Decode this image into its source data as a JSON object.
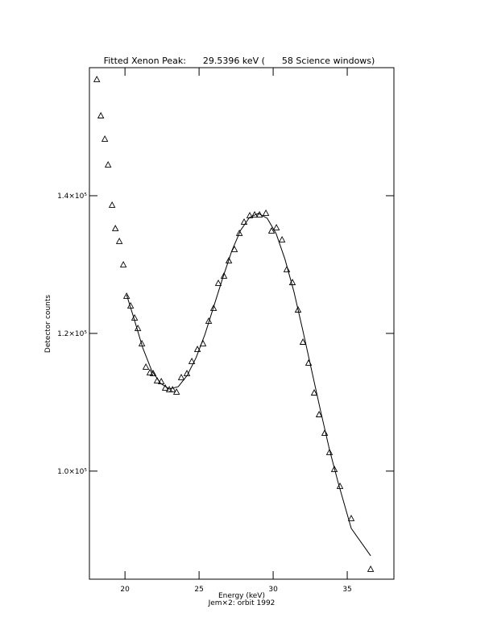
{
  "chart_data": {
    "type": "scatter",
    "title": "Fitted Xenon Peak:      29.5396 keV (      58 Science windows)",
    "subtitle": "Jem×2: orbit 1992",
    "x_label": "Energy (keV)",
    "y_label": "Detector counts",
    "xlim": [
      17.6,
      38.15
    ],
    "ylim": [
      84300,
      158600
    ],
    "xticks": [
      20,
      25,
      30,
      35
    ],
    "yticks": [
      {
        "value": 100000,
        "label": "1.0×10⁵"
      },
      {
        "value": 120000,
        "label": "1.2×10⁵"
      },
      {
        "value": 140000,
        "label": "1.4×10⁵"
      }
    ],
    "series": [
      {
        "name": "Data",
        "color": "#000000",
        "marker": "triangle",
        "x": [
          18.1,
          18.37,
          18.64,
          18.86,
          19.13,
          19.35,
          19.62,
          19.89,
          20.11,
          20.38,
          20.65,
          20.87,
          21.14,
          21.41,
          21.68,
          21.9,
          22.17,
          22.45,
          22.72,
          22.99,
          23.21,
          23.48,
          23.8,
          24.18,
          24.51,
          24.89,
          25.27,
          25.65,
          25.98,
          26.3,
          26.68,
          27.01,
          27.39,
          27.72,
          28.04,
          28.42,
          28.75,
          29.08,
          29.51,
          29.89,
          30.22,
          30.6,
          30.92,
          31.3,
          31.68,
          32.01,
          32.39,
          32.77,
          33.1,
          33.48,
          33.8,
          34.13,
          34.51,
          35.27,
          36.58
        ],
        "values": [
          156850,
          151580,
          148190,
          144450,
          138600,
          135200,
          133330,
          129940,
          125380,
          123970,
          122220,
          120700,
          118470,
          115080,
          114260,
          114140,
          113090,
          112970,
          112040,
          111800,
          111800,
          111450,
          113560,
          114140,
          115900,
          117650,
          118470,
          121750,
          123620,
          127250,
          128300,
          130520,
          132160,
          134500,
          136140,
          137080,
          137190,
          137190,
          137430,
          134850,
          135320,
          133570,
          129240,
          127360,
          123380,
          118700,
          115660,
          111330,
          108170,
          105480,
          102680,
          100220,
          97760,
          93080,
          85710
        ]
      },
      {
        "name": "Fit",
        "color": "#000000",
        "marker": "line",
        "x": [
          20.11,
          20.6,
          21.2,
          21.8,
          22.4,
          23.0,
          23.6,
          24.2,
          24.8,
          25.4,
          26.0,
          26.6,
          27.2,
          27.8,
          28.4,
          29.0,
          29.6,
          30.2,
          30.8,
          31.4,
          32.0,
          32.6,
          33.2,
          33.8,
          34.4,
          35.27,
          36.58
        ],
        "values": [
          125600,
          122220,
          117900,
          114620,
          112740,
          111920,
          112270,
          113910,
          116480,
          119880,
          123970,
          128070,
          131930,
          134970,
          136840,
          137430,
          136720,
          134500,
          130760,
          126080,
          120460,
          114610,
          108760,
          103140,
          98230,
          91680,
          87700
        ]
      }
    ]
  }
}
